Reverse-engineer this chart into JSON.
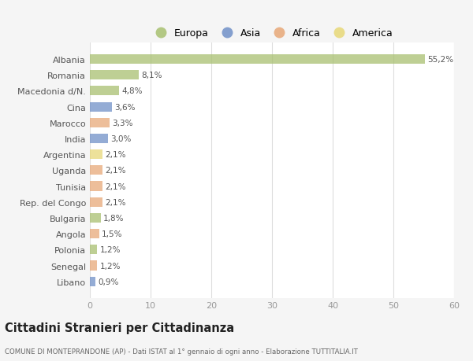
{
  "categories": [
    "Albania",
    "Romania",
    "Macedonia d/N.",
    "Cina",
    "Marocco",
    "India",
    "Argentina",
    "Uganda",
    "Tunisia",
    "Rep. del Congo",
    "Bulgaria",
    "Angola",
    "Polonia",
    "Senegal",
    "Libano"
  ],
  "values": [
    55.2,
    8.1,
    4.8,
    3.6,
    3.3,
    3.0,
    2.1,
    2.1,
    2.1,
    2.1,
    1.8,
    1.5,
    1.2,
    1.2,
    0.9
  ],
  "labels": [
    "55,2%",
    "8,1%",
    "4,8%",
    "3,6%",
    "3,3%",
    "3,0%",
    "2,1%",
    "2,1%",
    "2,1%",
    "2,1%",
    "1,8%",
    "1,5%",
    "1,2%",
    "1,2%",
    "0,9%"
  ],
  "colors": [
    "#a8c070",
    "#a8c070",
    "#a8c070",
    "#7090c8",
    "#e8a878",
    "#7090c8",
    "#e8d878",
    "#e8a878",
    "#e8a878",
    "#e8a878",
    "#a8c070",
    "#e8a878",
    "#a8c070",
    "#e8a878",
    "#7090c8"
  ],
  "continent_colors": {
    "Europa": "#a8c070",
    "Asia": "#7090c8",
    "Africa": "#e8a878",
    "America": "#e8d878"
  },
  "title": "Cittadini Stranieri per Cittadinanza",
  "subtitle": "COMUNE DI MONTEPRANDONE (AP) - Dati ISTAT al 1° gennaio di ogni anno - Elaborazione TUTTITALIA.IT",
  "xlim": [
    0,
    60
  ],
  "xticks": [
    0,
    10,
    20,
    30,
    40,
    50,
    60
  ],
  "background_color": "#f5f5f5",
  "bar_background": "#ffffff",
  "grid_color": "#dddddd"
}
